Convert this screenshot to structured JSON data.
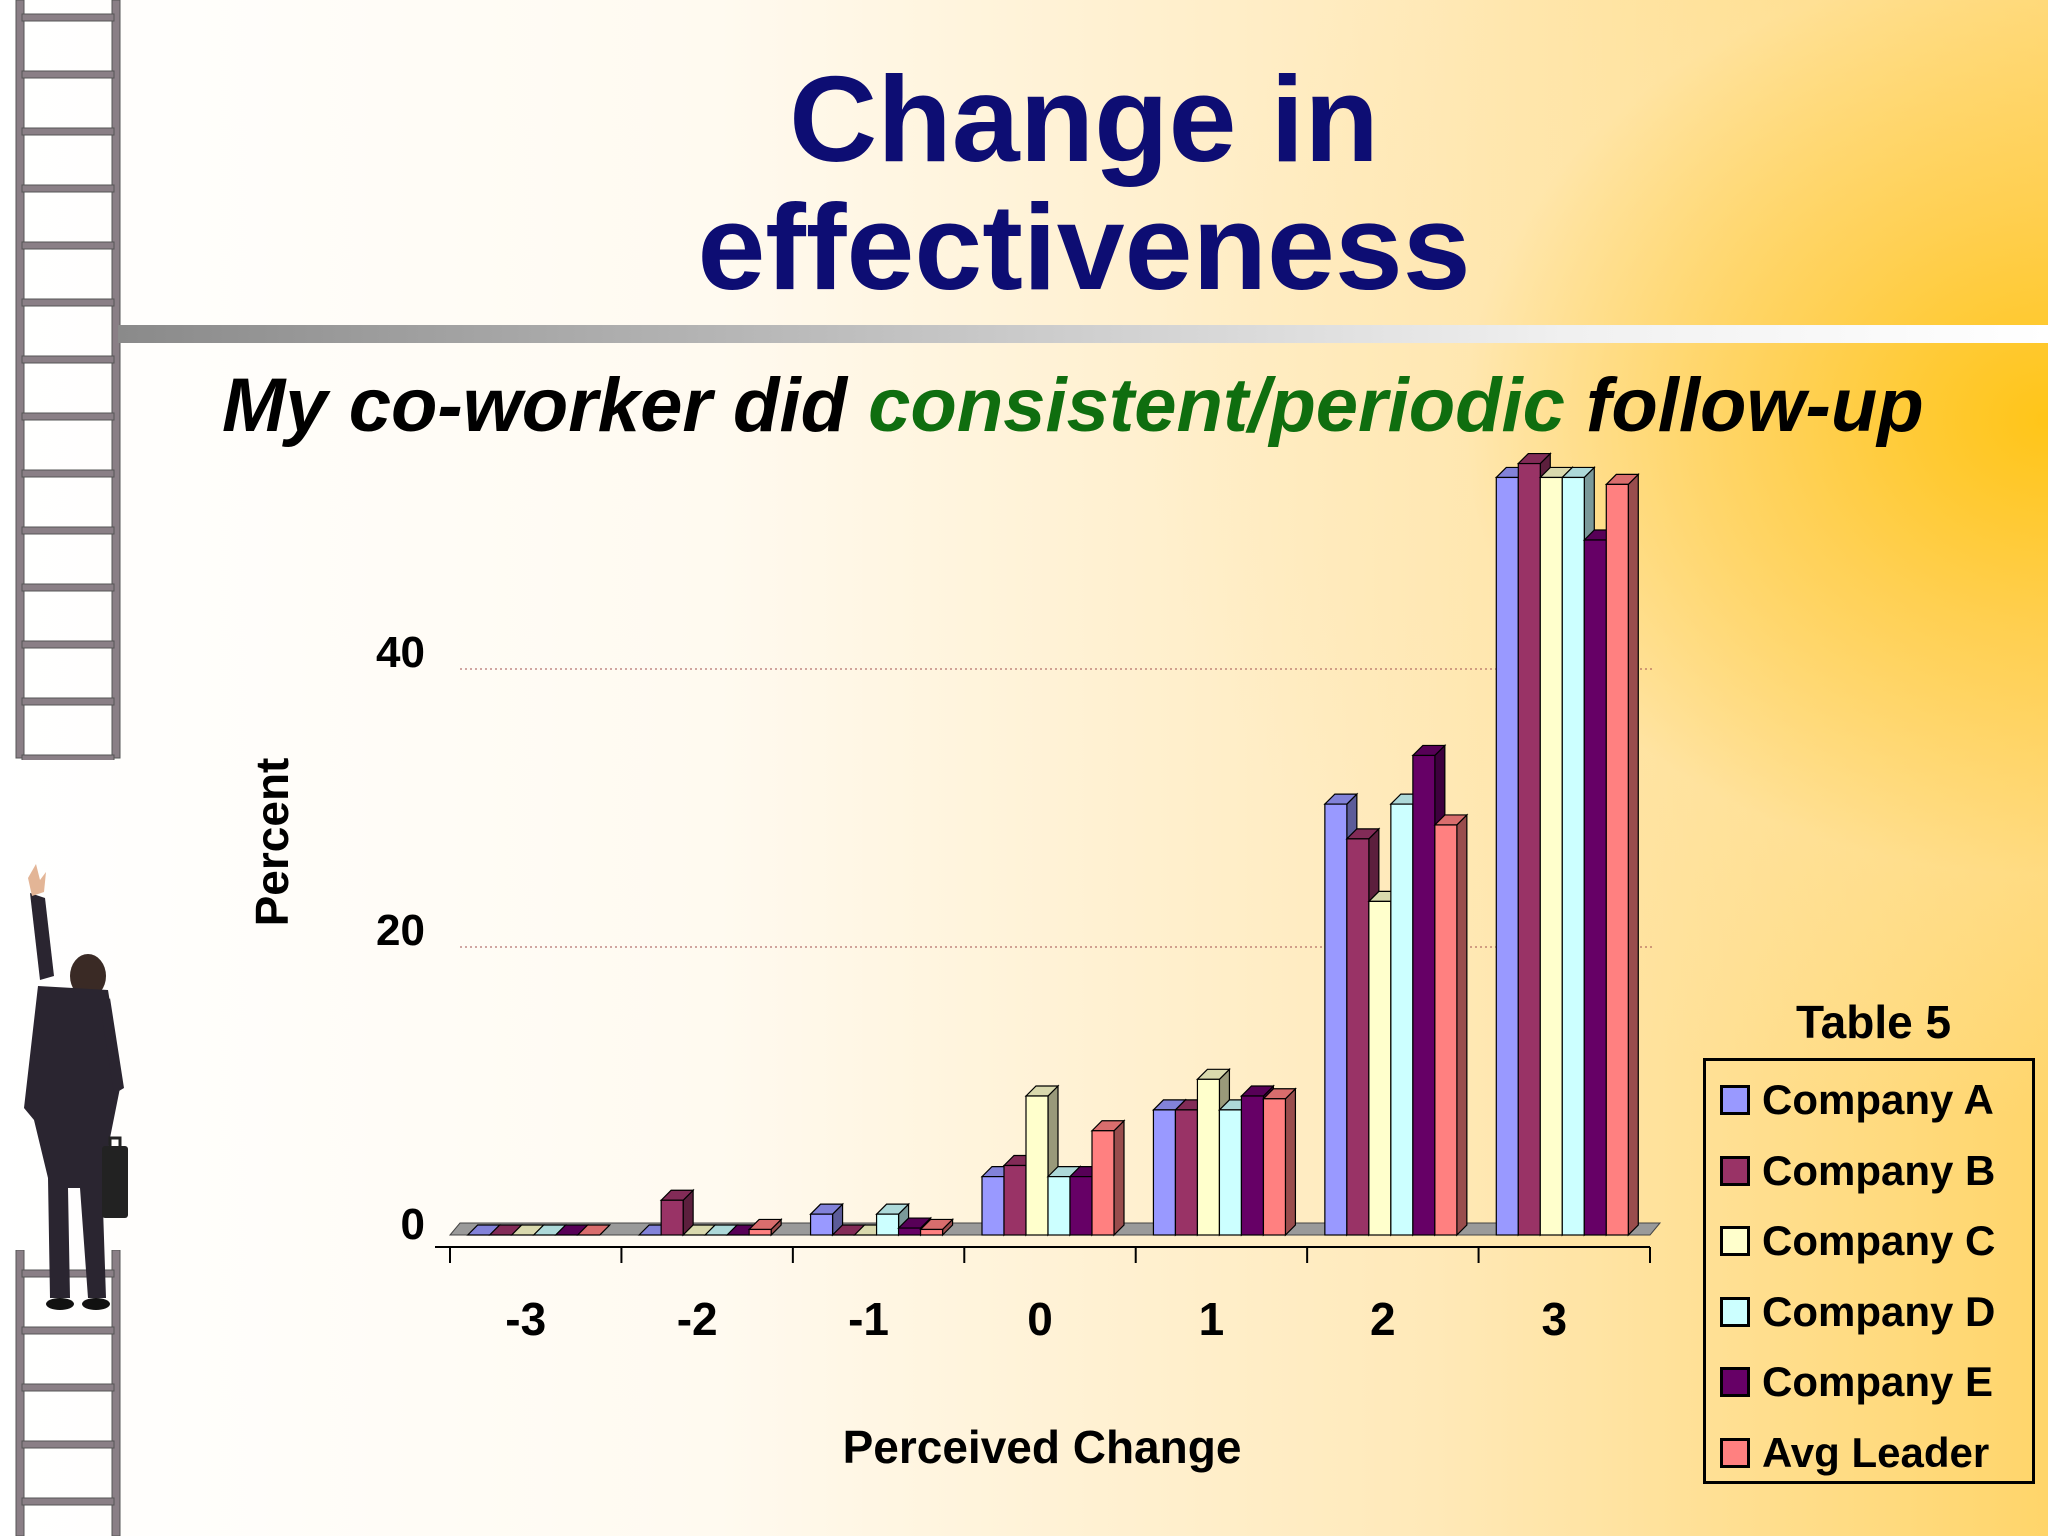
{
  "slide": {
    "title_line1": "Change in",
    "title_line2": "effectiveness",
    "subtitle_part1": "My co-worker did ",
    "subtitle_part2": "consistent/periodic",
    "subtitle_part3": " follow-up"
  },
  "colors": {
    "title": "#0d0d73",
    "highlight": "#0f6e0f"
  },
  "chart_data": {
    "type": "bar",
    "title": "Table 5",
    "xlabel": "Perceived Change",
    "ylabel": "Percent",
    "categories": [
      "-3",
      "-2",
      "-1",
      "0",
      "1",
      "2",
      "3"
    ],
    "yticks": [
      "0",
      "20",
      "40"
    ],
    "ylim": [
      0,
      55
    ],
    "grid": true,
    "legend_position": "right",
    "series": [
      {
        "name": "Company A",
        "color": "#9999ff",
        "values": [
          0,
          0,
          1.5,
          4.2,
          9,
          31,
          54.5
        ]
      },
      {
        "name": "Company B",
        "color": "#993366",
        "values": [
          0,
          2.5,
          0,
          5,
          9,
          28.5,
          55.5
        ]
      },
      {
        "name": "Company C",
        "color": "#ffffcc",
        "values": [
          0,
          0,
          0,
          10,
          11.2,
          24,
          54.5
        ]
      },
      {
        "name": "Company D",
        "color": "#ccffff",
        "values": [
          0,
          0,
          1.5,
          4.2,
          9,
          31,
          54.5
        ]
      },
      {
        "name": "Company E",
        "color": "#660066",
        "values": [
          0,
          0,
          0.5,
          4.2,
          10,
          34.5,
          50
        ]
      },
      {
        "name": "Avg Leader",
        "color": "#ff8080",
        "values": [
          0,
          0.4,
          0.4,
          7.5,
          9.8,
          29.5,
          54
        ]
      }
    ]
  }
}
